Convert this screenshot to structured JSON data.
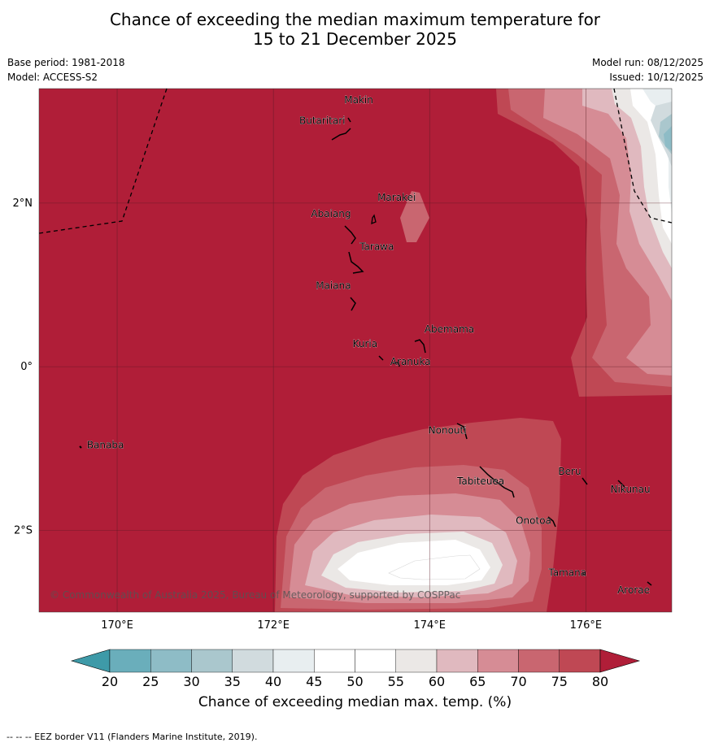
{
  "header": {
    "title_line1": "Chance of exceeding the median maximum temperature for",
    "title_line2": "15 to 21 December 2025",
    "base_period": "Base period: 1981-2018",
    "model": "Model: ACCESS-S2",
    "model_run": "Model run: 08/12/2025",
    "issued": "Issued: 10/12/2025"
  },
  "map": {
    "lat_ticks": [
      "2°N",
      "0°",
      "2°S"
    ],
    "lon_ticks": [
      "170°E",
      "172°E",
      "174°E",
      "176°E"
    ],
    "lon_range": [
      169.0,
      177.1
    ],
    "lat_range": [
      -3.0,
      3.4
    ],
    "copyright": "© Commonwealth of Australia 2025, Bureau of Meteorology, supported by COSPPac",
    "islands": [
      {
        "name": "Makin",
        "lon": 172.98,
        "lat": 3.2
      },
      {
        "name": "Butaritari",
        "lon": 172.8,
        "lat": 3.0
      },
      {
        "name": "Marakei",
        "lon": 173.28,
        "lat": 2.0
      },
      {
        "name": "Abaiang",
        "lon": 172.95,
        "lat": 1.8
      },
      {
        "name": "Tarawa",
        "lon": 173.0,
        "lat": 1.4
      },
      {
        "name": "Maiana",
        "lon": 173.0,
        "lat": 0.95
      },
      {
        "name": "Abemama",
        "lon": 173.85,
        "lat": 0.4
      },
      {
        "name": "Kuria",
        "lon": 173.4,
        "lat": 0.22
      },
      {
        "name": "Aranuka",
        "lon": 173.6,
        "lat": 0.17
      },
      {
        "name": "Banaba",
        "lon": 169.55,
        "lat": -0.85
      },
      {
        "name": "Nonouti",
        "lon": 174.4,
        "lat": -0.7
      },
      {
        "name": "Tabiteuea",
        "lon": 174.8,
        "lat": -1.3
      },
      {
        "name": "Beru",
        "lon": 175.98,
        "lat": -1.33
      },
      {
        "name": "Nikunau",
        "lon": 176.45,
        "lat": -1.35
      },
      {
        "name": "Onotoa",
        "lon": 175.55,
        "lat": -1.85
      },
      {
        "name": "Tamana",
        "lon": 175.98,
        "lat": -2.5
      },
      {
        "name": "Arorae",
        "lon": 176.82,
        "lat": -2.65
      }
    ]
  },
  "colorbar": {
    "ticks": [
      "20",
      "25",
      "30",
      "35",
      "40",
      "45",
      "50",
      "55",
      "60",
      "65",
      "70",
      "75",
      "80"
    ],
    "colors": [
      "#3e9aa8",
      "#6aaebb",
      "#8ebcc6",
      "#aac7cd",
      "#d1dbde",
      "#e8eef0",
      "#ffffff",
      "#ffffff",
      "#ebe8e6",
      "#e0b9bf",
      "#d68c95",
      "#c96670",
      "#bf4854",
      "#b01e38"
    ],
    "label": "Chance of exceeding median max. temp. (%)"
  },
  "footnote": "--  --  -- EEZ border V11 (Flanders Marine Institute, 2019)."
}
